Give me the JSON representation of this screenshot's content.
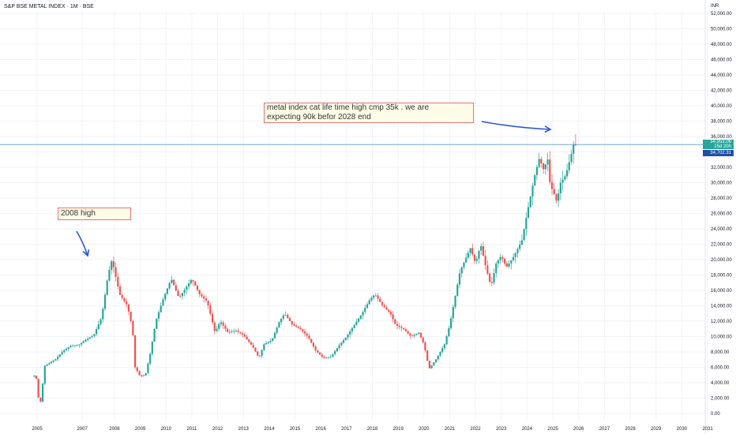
{
  "chart_data": {
    "type": "candlestick",
    "title": "S&P BSE METAL INDEX · 1M · BSE",
    "currency": "INR",
    "x_ticks": [
      "2005",
      "2007",
      "2008",
      "2009",
      "2010",
      "2011",
      "2012",
      "2013",
      "2014",
      "2015",
      "2016",
      "2017",
      "2018",
      "2019",
      "2020",
      "2021",
      "2022",
      "2023",
      "2024",
      "2025",
      "2026",
      "2027",
      "2028",
      "2029",
      "2030",
      "2031"
    ],
    "x_tick_years": [
      2005,
      2006.75,
      2008,
      2009,
      2010,
      2011,
      2012,
      2013,
      2014,
      2015,
      2016,
      2017,
      2018,
      2019,
      2020,
      2021,
      2022,
      2023,
      2024,
      2025,
      2026,
      2027,
      2028,
      2029,
      2030,
      2031
    ],
    "y_ticks": [
      "0.00",
      "2,000.00",
      "4,000.00",
      "6,000.00",
      "8,000.00",
      "10,000.00",
      "12,000.00",
      "14,000.00",
      "16,000.00",
      "18,000.00",
      "20,000.00",
      "22,000.00",
      "24,000.00",
      "26,000.00",
      "28,000.00",
      "30,000.00",
      "32,000.00",
      "34,000.00",
      "36,000.00",
      "38,000.00",
      "40,000.00",
      "42,000.00",
      "44,000.00",
      "46,000.00",
      "48,000.00",
      "50,000.00",
      "52,000.00"
    ],
    "ylim": [
      0,
      52000
    ],
    "xlim": [
      2004.0,
      2031.0
    ],
    "anchors": [
      {
        "t": 2004.8,
        "v": 4800
      },
      {
        "t": 2004.95,
        "v": 5000
      },
      {
        "t": 2005.1,
        "v": 600
      },
      {
        "t": 2005.3,
        "v": 6200
      },
      {
        "t": 2005.7,
        "v": 7000
      },
      {
        "t": 2006.0,
        "v": 8100
      },
      {
        "t": 2006.3,
        "v": 8800
      },
      {
        "t": 2006.6,
        "v": 8900
      },
      {
        "t": 2006.9,
        "v": 9600
      },
      {
        "t": 2007.2,
        "v": 10200
      },
      {
        "t": 2007.5,
        "v": 12500
      },
      {
        "t": 2007.75,
        "v": 18000
      },
      {
        "t": 2007.9,
        "v": 20000
      },
      {
        "t": 2008.2,
        "v": 15500
      },
      {
        "t": 2008.5,
        "v": 14000
      },
      {
        "t": 2008.7,
        "v": 11000
      },
      {
        "t": 2008.8,
        "v": 6000
      },
      {
        "t": 2009.0,
        "v": 4800
      },
      {
        "t": 2009.2,
        "v": 5000
      },
      {
        "t": 2009.4,
        "v": 8000
      },
      {
        "t": 2009.6,
        "v": 12000
      },
      {
        "t": 2009.9,
        "v": 15000
      },
      {
        "t": 2010.2,
        "v": 17500
      },
      {
        "t": 2010.5,
        "v": 15000
      },
      {
        "t": 2010.8,
        "v": 16500
      },
      {
        "t": 2011.0,
        "v": 17500
      },
      {
        "t": 2011.3,
        "v": 15500
      },
      {
        "t": 2011.6,
        "v": 14500
      },
      {
        "t": 2011.9,
        "v": 10500
      },
      {
        "t": 2012.1,
        "v": 12000
      },
      {
        "t": 2012.4,
        "v": 10500
      },
      {
        "t": 2012.7,
        "v": 10800
      },
      {
        "t": 2013.0,
        "v": 10200
      },
      {
        "t": 2013.4,
        "v": 8500
      },
      {
        "t": 2013.6,
        "v": 7200
      },
      {
        "t": 2013.8,
        "v": 9000
      },
      {
        "t": 2014.1,
        "v": 9500
      },
      {
        "t": 2014.4,
        "v": 12000
      },
      {
        "t": 2014.6,
        "v": 13000
      },
      {
        "t": 2014.9,
        "v": 11500
      },
      {
        "t": 2015.2,
        "v": 11000
      },
      {
        "t": 2015.5,
        "v": 10000
      },
      {
        "t": 2015.8,
        "v": 8200
      },
      {
        "t": 2016.1,
        "v": 7200
      },
      {
        "t": 2016.4,
        "v": 7400
      },
      {
        "t": 2016.7,
        "v": 8800
      },
      {
        "t": 2017.0,
        "v": 10000
      },
      {
        "t": 2017.3,
        "v": 11500
      },
      {
        "t": 2017.6,
        "v": 13000
      },
      {
        "t": 2017.9,
        "v": 14800
      },
      {
        "t": 2018.1,
        "v": 15500
      },
      {
        "t": 2018.4,
        "v": 14000
      },
      {
        "t": 2018.7,
        "v": 13000
      },
      {
        "t": 2018.9,
        "v": 11500
      },
      {
        "t": 2019.2,
        "v": 11000
      },
      {
        "t": 2019.5,
        "v": 10000
      },
      {
        "t": 2019.8,
        "v": 10500
      },
      {
        "t": 2020.0,
        "v": 9000
      },
      {
        "t": 2020.2,
        "v": 5800
      },
      {
        "t": 2020.5,
        "v": 7200
      },
      {
        "t": 2020.8,
        "v": 9000
      },
      {
        "t": 2021.0,
        "v": 11500
      },
      {
        "t": 2021.2,
        "v": 15000
      },
      {
        "t": 2021.4,
        "v": 18500
      },
      {
        "t": 2021.6,
        "v": 20000
      },
      {
        "t": 2021.8,
        "v": 21500
      },
      {
        "t": 2022.0,
        "v": 19500
      },
      {
        "t": 2022.2,
        "v": 22000
      },
      {
        "t": 2022.4,
        "v": 19000
      },
      {
        "t": 2022.6,
        "v": 16500
      },
      {
        "t": 2022.8,
        "v": 19500
      },
      {
        "t": 2023.0,
        "v": 20500
      },
      {
        "t": 2023.2,
        "v": 19000
      },
      {
        "t": 2023.5,
        "v": 20500
      },
      {
        "t": 2023.8,
        "v": 22500
      },
      {
        "t": 2024.0,
        "v": 26000
      },
      {
        "t": 2024.3,
        "v": 31000
      },
      {
        "t": 2024.5,
        "v": 33500
      },
      {
        "t": 2024.6,
        "v": 31500
      },
      {
        "t": 2024.8,
        "v": 33000
      },
      {
        "t": 2024.9,
        "v": 29500
      },
      {
        "t": 2025.0,
        "v": 29000
      },
      {
        "t": 2025.15,
        "v": 27500
      },
      {
        "t": 2025.3,
        "v": 30000
      },
      {
        "t": 2025.5,
        "v": 31000
      },
      {
        "t": 2025.7,
        "v": 33500
      },
      {
        "t": 2025.8,
        "v": 35000
      },
      {
        "t": 2025.95,
        "v": 34702
      }
    ],
    "last_price": "34,953.06",
    "countdown": "15d 20h",
    "prev_price": "34,702.31",
    "horizontal_line": 34953,
    "colors": {
      "up": "#26a69a",
      "down": "#ef5350",
      "line": "#5b9bd5",
      "arrow": "#2e57d6",
      "grid": "#f0f3fa",
      "tag_green": "#26a69a",
      "tag_blue": "#1e4fa8"
    },
    "annotations": [
      {
        "text": "2008 high"
      },
      {
        "text_line1": "metal index cat life time high cmp 35k . we are",
        "text_line2": "expecting 90k befor 2028 end"
      }
    ]
  }
}
